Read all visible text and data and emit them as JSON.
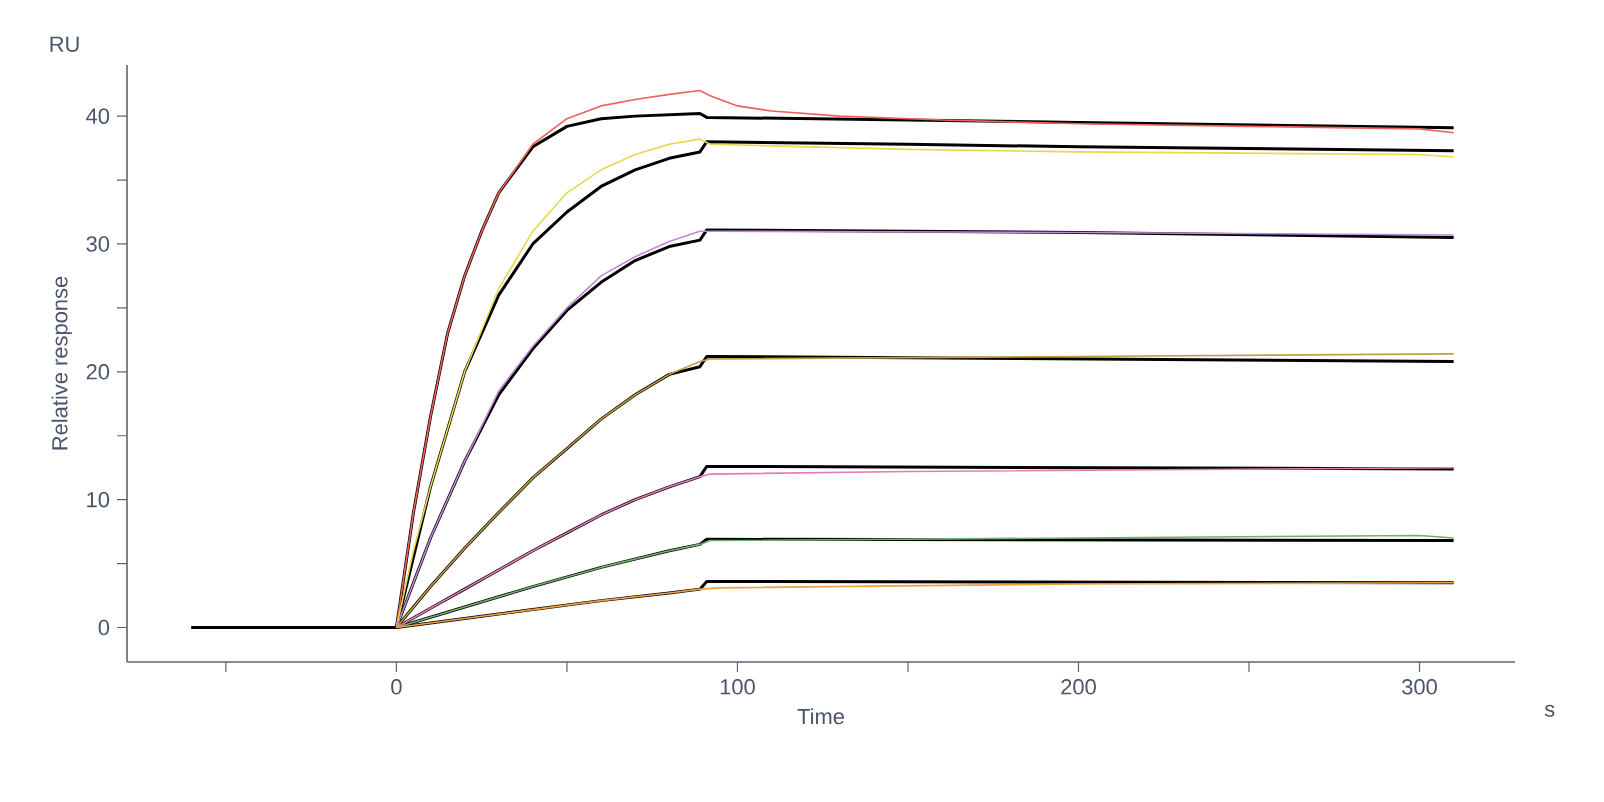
{
  "chart_data": {
    "type": "line",
    "xlabel": "Time",
    "ylabel": "Relative response",
    "annotations": [
      "RU",
      "s"
    ],
    "xlim": [
      -79,
      328
    ],
    "ylim": [
      -2.7,
      44
    ],
    "xticks": [
      {
        "value": -50,
        "label": null
      },
      0,
      {
        "value": 50,
        "label": null
      },
      100,
      {
        "value": 150,
        "label": null
      },
      200,
      {
        "value": 250,
        "label": null
      },
      300
    ],
    "yticks": [
      0,
      {
        "value": 5,
        "label": null
      },
      10,
      {
        "value": 15,
        "label": null
      },
      20,
      {
        "value": 25,
        "label": null
      },
      30,
      {
        "value": 35,
        "label": null
      },
      40
    ],
    "grid": false,
    "marker": "none",
    "line_style": "solid",
    "series": [
      {
        "color": "#f0605a",
        "x": [
          0,
          5,
          10,
          15,
          20,
          25,
          30,
          40,
          50,
          60,
          70,
          80,
          89,
          92,
          100,
          110,
          130,
          160,
          200,
          250,
          300,
          310
        ],
        "values": [
          0,
          9,
          16.5,
          23,
          27.5,
          31,
          34,
          37.8,
          39.8,
          40.8,
          41.3,
          41.7,
          42,
          41.6,
          40.8,
          40.4,
          40,
          39.7,
          39.4,
          39.2,
          39,
          38.7
        ]
      },
      {
        "color": "#e8d84a",
        "x": [
          0,
          5,
          10,
          20,
          30,
          40,
          50,
          60,
          70,
          80,
          89,
          92,
          150,
          200,
          300,
          310
        ],
        "values": [
          0,
          6,
          11,
          20,
          26.5,
          31,
          34,
          35.8,
          37,
          37.8,
          38.2,
          37.8,
          37.4,
          37.2,
          37,
          36.8
        ]
      },
      {
        "color": "#c08ad8",
        "x": [
          0,
          10,
          20,
          30,
          40,
          50,
          60,
          70,
          80,
          89,
          92,
          200,
          310
        ],
        "values": [
          0,
          7,
          13,
          18.5,
          22,
          25,
          27.5,
          29,
          30.2,
          31,
          31,
          30.9,
          30.7
        ]
      },
      {
        "color": "#c0a040",
        "x": [
          0,
          10,
          20,
          30,
          40,
          50,
          60,
          70,
          80,
          89,
          92,
          200,
          310
        ],
        "values": [
          0,
          3.2,
          6.2,
          9,
          11.7,
          14,
          16.3,
          18.2,
          19.8,
          20.8,
          21,
          21.2,
          21.4
        ]
      },
      {
        "color": "#e87ab8",
        "x": [
          0,
          10,
          20,
          30,
          40,
          50,
          60,
          70,
          80,
          89,
          92,
          150,
          310
        ],
        "values": [
          0,
          1.5,
          3,
          4.5,
          6,
          7.4,
          8.8,
          10,
          11,
          11.8,
          12,
          12.2,
          12.5
        ]
      },
      {
        "color": "#70b070",
        "x": [
          0,
          20,
          40,
          60,
          80,
          89,
          92,
          200,
          300,
          310
        ],
        "values": [
          0,
          1.6,
          3.2,
          4.7,
          6,
          6.5,
          6.8,
          7,
          7.2,
          7
        ]
      },
      {
        "color": "#f0a040",
        "x": [
          0,
          20,
          40,
          60,
          80,
          89,
          95,
          200,
          310
        ],
        "values": [
          0,
          0.7,
          1.4,
          2.1,
          2.7,
          3,
          3.1,
          3.4,
          3.5
        ]
      },
      {
        "color": "#000000",
        "x": [
          -60,
          0,
          5,
          10,
          15,
          20,
          25,
          30,
          40,
          50,
          60,
          70,
          89,
          91,
          150,
          200,
          310
        ],
        "values": [
          0,
          0,
          9,
          16.5,
          23,
          27.5,
          31,
          34,
          37.6,
          39.2,
          39.8,
          40,
          40.2,
          39.9,
          39.7,
          39.5,
          39.1
        ]
      },
      {
        "color": "#000000",
        "x": [
          -60,
          0,
          10,
          20,
          30,
          40,
          50,
          60,
          70,
          80,
          89,
          91,
          150,
          200,
          310
        ],
        "values": [
          0,
          0,
          11,
          20,
          26,
          30,
          32.5,
          34.5,
          35.8,
          36.7,
          37.2,
          38,
          37.8,
          37.6,
          37.3
        ]
      },
      {
        "color": "#000000",
        "x": [
          -60,
          0,
          10,
          20,
          30,
          40,
          50,
          60,
          70,
          80,
          89,
          91,
          200,
          310
        ],
        "values": [
          0,
          0,
          7,
          13,
          18.2,
          21.8,
          24.8,
          27,
          28.7,
          29.8,
          30.3,
          31.1,
          30.9,
          30.5
        ]
      },
      {
        "color": "#000000",
        "x": [
          -60,
          0,
          10,
          20,
          30,
          40,
          50,
          60,
          70,
          80,
          89,
          91,
          310
        ],
        "values": [
          0,
          0,
          3.2,
          6.2,
          9,
          11.7,
          14,
          16.3,
          18.2,
          19.8,
          20.4,
          21.2,
          20.8
        ]
      },
      {
        "color": "#000000",
        "x": [
          -60,
          0,
          10,
          20,
          30,
          40,
          50,
          60,
          70,
          80,
          89,
          91,
          310
        ],
        "values": [
          0,
          0,
          1.5,
          3,
          4.5,
          6,
          7.4,
          8.8,
          10,
          11,
          11.8,
          12.6,
          12.4
        ]
      },
      {
        "color": "#000000",
        "x": [
          -60,
          0,
          20,
          40,
          60,
          80,
          89,
          91,
          310
        ],
        "values": [
          0,
          0,
          1.6,
          3.2,
          4.7,
          6,
          6.5,
          6.9,
          6.8
        ]
      },
      {
        "color": "#000000",
        "x": [
          -60,
          0,
          20,
          40,
          60,
          80,
          89,
          91,
          310
        ],
        "values": [
          0,
          0,
          0.7,
          1.4,
          2.1,
          2.7,
          3,
          3.6,
          3.5
        ]
      }
    ]
  }
}
